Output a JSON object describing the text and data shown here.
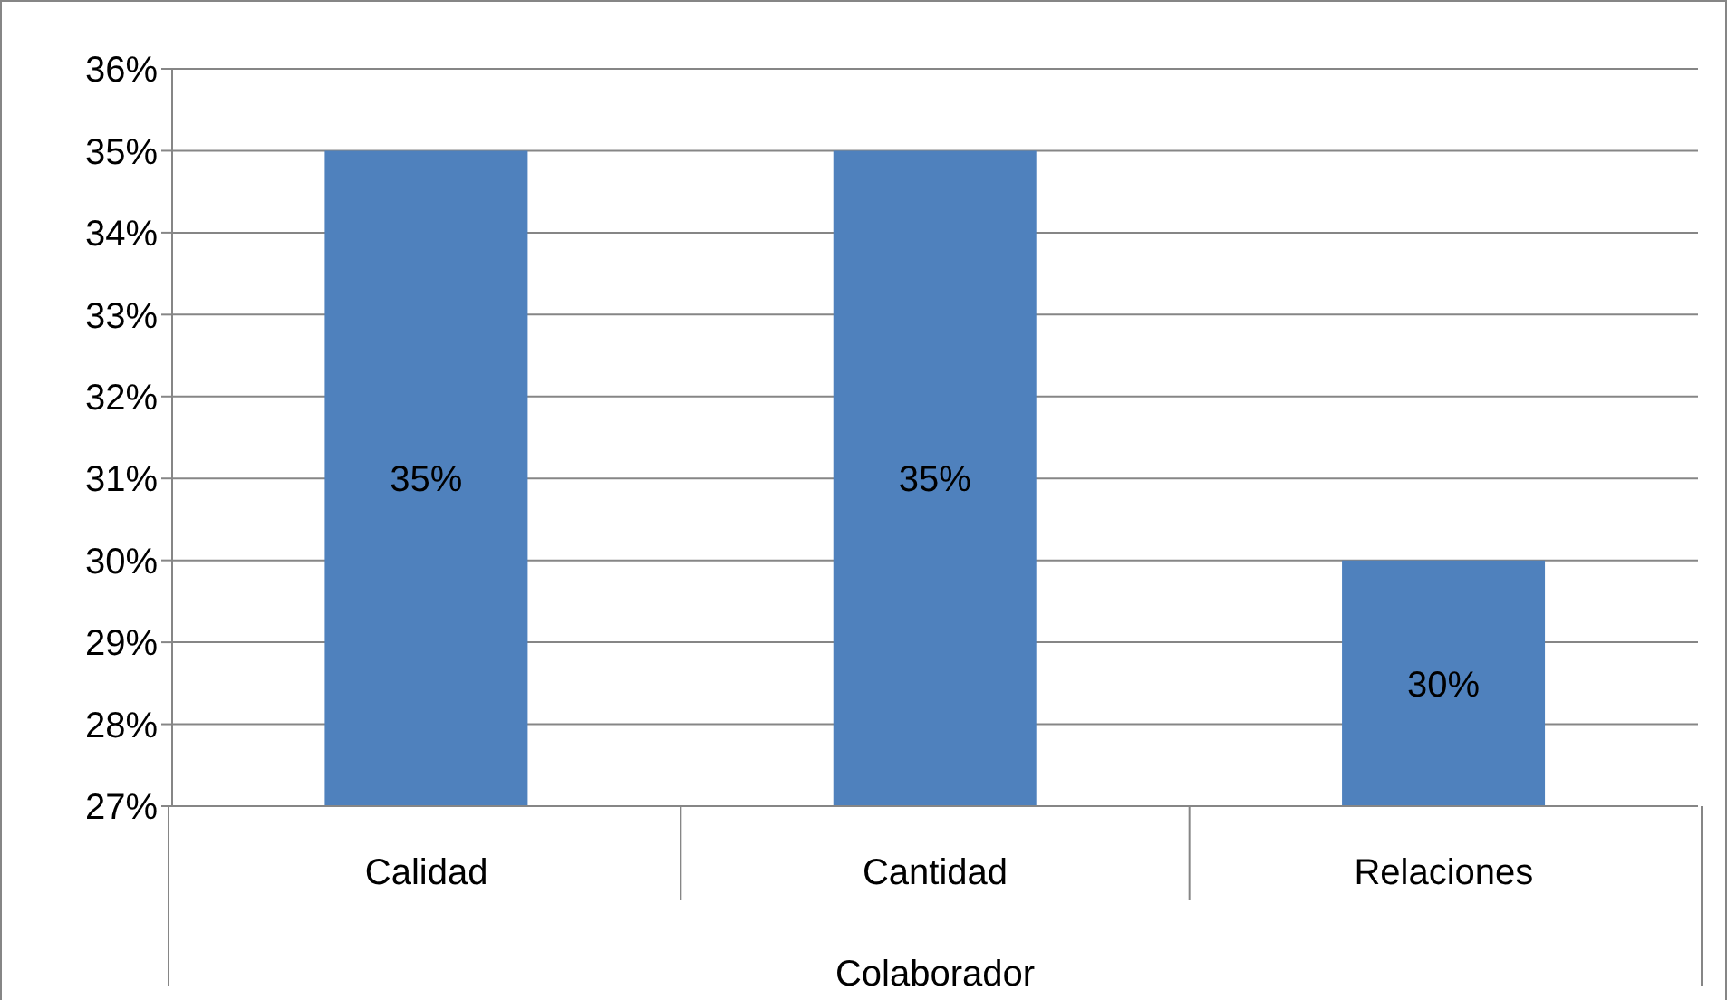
{
  "chart_data": {
    "type": "bar",
    "categories": [
      "Calidad",
      "Cantidad",
      "Relaciones"
    ],
    "values": [
      35,
      35,
      30
    ],
    "color": "#4f81bd",
    "value_labels": [
      "35%",
      "35%",
      "30%"
    ],
    "xlabel": "Colaborador",
    "ylim": [
      27,
      36
    ],
    "yticks": [
      {
        "value": 27,
        "label": "27%"
      },
      {
        "value": 28,
        "label": "28%"
      },
      {
        "value": 29,
        "label": "29%"
      },
      {
        "value": 30,
        "label": "30%"
      },
      {
        "value": 31,
        "label": "31%"
      },
      {
        "value": 32,
        "label": "32%"
      },
      {
        "value": 33,
        "label": "33%"
      },
      {
        "value": 34,
        "label": "34%"
      },
      {
        "value": 35,
        "label": "35%"
      },
      {
        "value": 36,
        "label": "36%"
      }
    ],
    "grid": "y",
    "legend": false
  }
}
